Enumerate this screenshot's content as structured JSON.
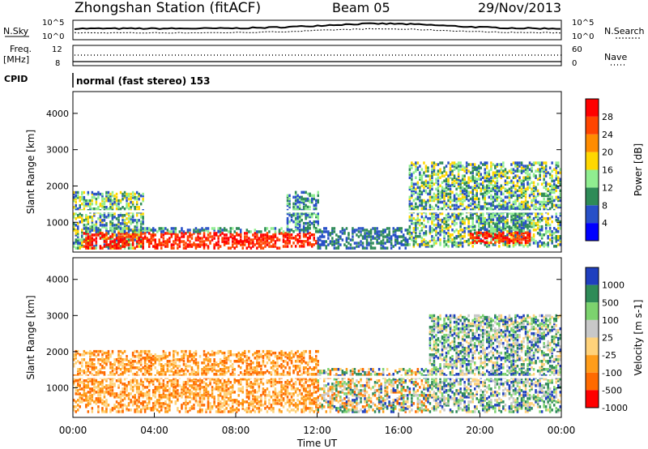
{
  "header": {
    "station": "Zhongshan Station (fitACF)",
    "beam": "Beam 05",
    "date": "29/Nov/2013",
    "program": "normal (fast stereo) 153"
  },
  "side_labels": {
    "nsky": "N.Sky",
    "nsearch": "N.Search",
    "freq_line1": "Freq.",
    "freq_line2": "[MHz]",
    "nave": "Nave",
    "cpid": "CPID",
    "noise_tick_top": "10^5",
    "noise_tick_bottom": "10^0",
    "freq_tick_top": "12",
    "freq_tick_bottom": "8",
    "nave_tick_top": "60",
    "nave_tick_bottom": "0"
  },
  "chart_data": [
    {
      "type": "heatmap",
      "panel": "power",
      "xlabel": "",
      "ylabel": "Slant Range [km]",
      "xlim": [
        0,
        24
      ],
      "ylim": [
        180,
        4600
      ],
      "yticks": [
        1000,
        2000,
        3000,
        4000
      ],
      "colorbar": {
        "title": "Power [dB]",
        "range": [
          0,
          32
        ],
        "tick_labels": [
          "4",
          "8",
          "12",
          "16",
          "20",
          "24",
          "28"
        ],
        "colors": [
          "#0000ff",
          "#2850c8",
          "#2e8b57",
          "#90ee90",
          "#ffd700",
          "#ff8c00",
          "#ff4500",
          "#ff0000"
        ]
      },
      "bands": [
        {
          "start": 0.0,
          "end": 3.5,
          "r1": 250,
          "r2": 1800,
          "level": "mid"
        },
        {
          "start": 0.5,
          "end": 10.5,
          "r1": 250,
          "r2": 800,
          "level": "high"
        },
        {
          "start": 10.5,
          "end": 12.0,
          "r1": 300,
          "r2": 1800,
          "level": "high"
        },
        {
          "start": 12.0,
          "end": 16.5,
          "r1": 250,
          "r2": 800,
          "level": "low"
        },
        {
          "start": 16.5,
          "end": 24.0,
          "r1": 300,
          "r2": 2600,
          "level": "mid"
        },
        {
          "start": 19.5,
          "end": 22.5,
          "r1": 400,
          "r2": 1400,
          "level": "high"
        }
      ]
    },
    {
      "type": "heatmap",
      "panel": "velocity",
      "xlabel": "Time UT",
      "ylabel": "Slant Range [km]",
      "xlim": [
        0,
        24
      ],
      "ylim": [
        180,
        4600
      ],
      "yticks": [
        1000,
        2000,
        3000,
        4000
      ],
      "xticks": [
        "00:00",
        "04:00",
        "08:00",
        "12:00",
        "16:00",
        "20:00",
        "00:00"
      ],
      "colorbar": {
        "title": "Velocity [m s-1]",
        "range": [
          -1000,
          1000
        ],
        "tick_labels": [
          "1000",
          "500",
          "100",
          "25",
          "-25",
          "-100",
          "-500",
          "-1000"
        ],
        "colors": [
          "#1f3fbf",
          "#2e8b57",
          "#7cd36e",
          "#c8c8c8",
          "#ffd27a",
          "#ff9d1a",
          "#ff6a00",
          "#ff0000"
        ]
      },
      "bands": [
        {
          "start": 0.0,
          "end": 12.0,
          "r1": 300,
          "r2": 2000,
          "level": "negative"
        },
        {
          "start": 12.0,
          "end": 17.5,
          "r1": 300,
          "r2": 1500,
          "level": "mixed"
        },
        {
          "start": 17.5,
          "end": 24.0,
          "r1": 300,
          "r2": 3000,
          "level": "positive"
        }
      ]
    }
  ]
}
